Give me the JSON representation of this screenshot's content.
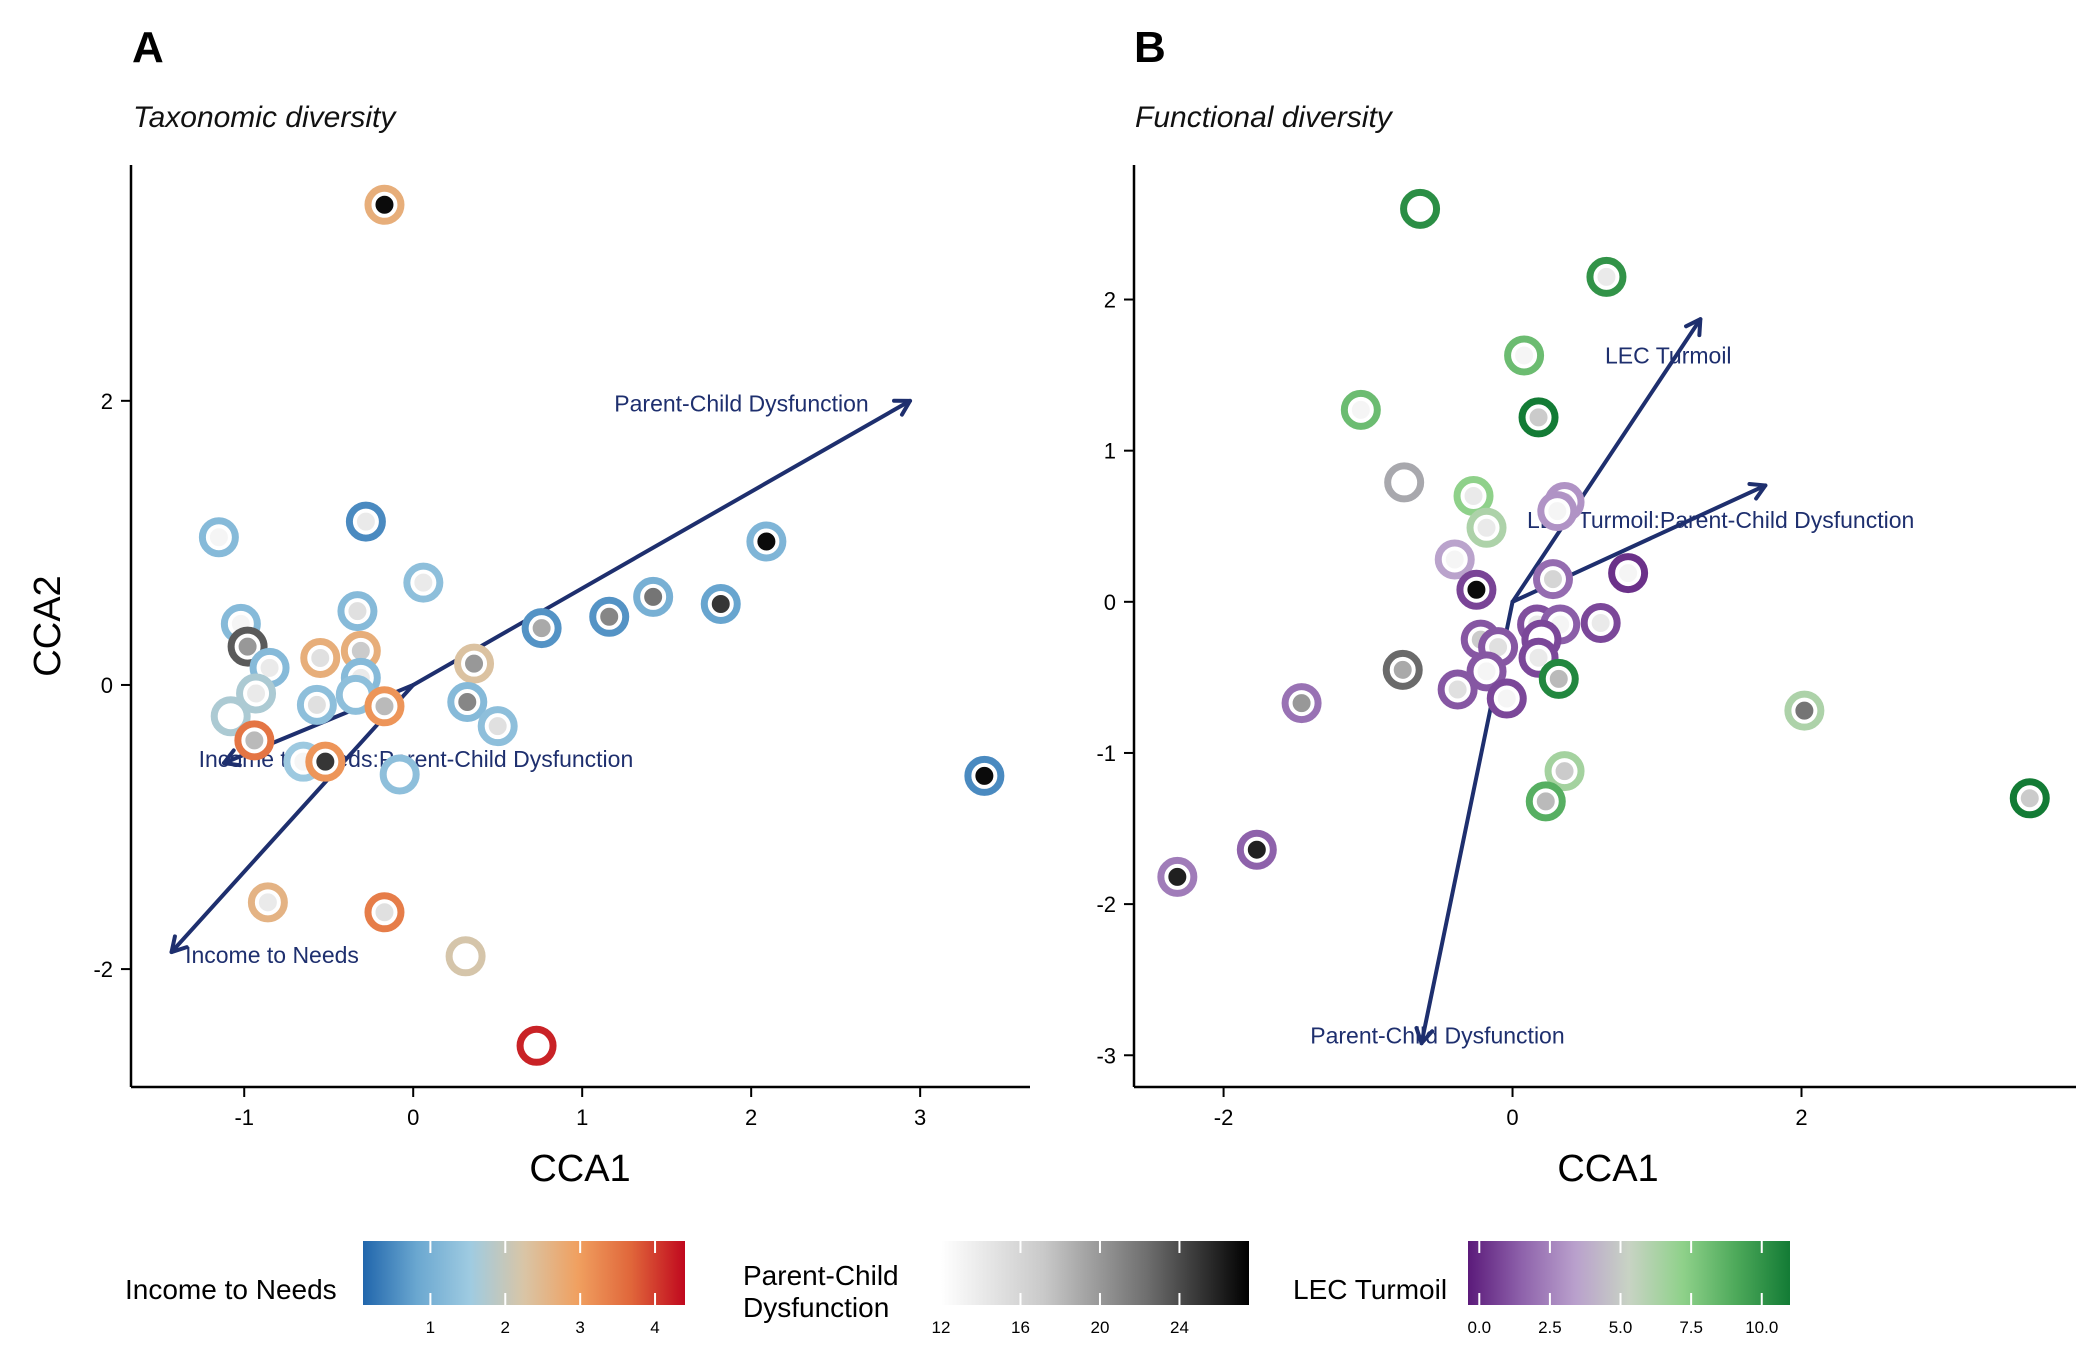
{
  "legend": {
    "income_title": "Income to Needs",
    "income_ticks": [
      "1",
      "2",
      "3",
      "4"
    ],
    "income_tick_values": [
      1,
      2,
      3,
      4
    ],
    "income_range": [
      0.1,
      4.4
    ],
    "income_colors": [
      "#2166ac",
      "#6aa7d0",
      "#9fcbe1",
      "#d9c5a6",
      "#f0a060",
      "#e0663a",
      "#c0081e"
    ],
    "pcd_title_line1": "Parent-Child",
    "pcd_title_line2": "Dysfunction",
    "pcd_ticks": [
      "12",
      "16",
      "20",
      "24"
    ],
    "pcd_tick_values": [
      12,
      16,
      20,
      24
    ],
    "pcd_range": [
      12,
      27.5
    ],
    "pcd_colors": [
      "#ffffff",
      "#c9c9c9",
      "#6f6f6f",
      "#000000"
    ],
    "lec_title": "LEC Turmoil",
    "lec_ticks": [
      "0.0",
      "2.5",
      "5.0",
      "7.5",
      "10.0"
    ],
    "lec_tick_values": [
      0,
      2.5,
      5,
      7.5,
      10
    ],
    "lec_range": [
      -0.4,
      11.0
    ],
    "lec_colors": [
      "#5b1a7a",
      "#8e62ab",
      "#b9a0cc",
      "#c8d3c4",
      "#8fd18a",
      "#4da95a",
      "#137b35"
    ]
  },
  "chart_data": [
    {
      "type": "scatter",
      "panel_label": "A",
      "title": "Taxonomic diversity",
      "xlabel": "CCA1",
      "ylabel": "CCA2",
      "xlim": [
        -1.67,
        3.65
      ],
      "ylim": [
        -2.83,
        3.66
      ],
      "xticks": [
        -1,
        0,
        1,
        2,
        3
      ],
      "xtick_labels": [
        "-1",
        "0",
        "1",
        "2",
        "3"
      ],
      "yticks": [
        -2,
        0,
        2
      ],
      "ytick_labels": [
        "-2",
        "0",
        "2"
      ],
      "ring_color_variable": "Income to Needs",
      "fill_color_variable": "Parent-Child Dysfunction",
      "points": [
        {
          "x": -0.17,
          "y": 3.38,
          "ring": 2.7,
          "fill": 27
        },
        {
          "x": -1.15,
          "y": 1.04,
          "ring": 1.2,
          "fill": 13
        },
        {
          "x": -0.28,
          "y": 1.15,
          "ring": 0.5,
          "fill": 14
        },
        {
          "x": 0.06,
          "y": 0.72,
          "ring": 1.3,
          "fill": 14
        },
        {
          "x": 2.09,
          "y": 1.01,
          "ring": 1.1,
          "fill": 27
        },
        {
          "x": -1.02,
          "y": 0.43,
          "ring": 1.2,
          "fill": 13
        },
        {
          "x": -0.33,
          "y": 0.52,
          "ring": 1.2,
          "fill": 15
        },
        {
          "x": 1.42,
          "y": 0.62,
          "ring": 1.0,
          "fill": 22
        },
        {
          "x": 1.82,
          "y": 0.57,
          "ring": 0.8,
          "fill": 25
        },
        {
          "x": 1.16,
          "y": 0.48,
          "ring": 0.6,
          "fill": 21
        },
        {
          "x": 0.76,
          "y": 0.4,
          "ring": 0.6,
          "fill": 19
        },
        {
          "x": -0.98,
          "y": 0.27,
          "ring": 2.0,
          "fill": 20,
          "ring_override": "#5a5a5a"
        },
        {
          "x": -0.31,
          "y": 0.24,
          "ring": 2.7,
          "fill": 17
        },
        {
          "x": -0.55,
          "y": 0.19,
          "ring": 2.7,
          "fill": 15
        },
        {
          "x": -0.85,
          "y": 0.12,
          "ring": 1.2,
          "fill": 14
        },
        {
          "x": 0.36,
          "y": 0.15,
          "ring": 2.3,
          "fill": 20
        },
        {
          "x": -0.31,
          "y": 0.05,
          "ring": 1.2,
          "fill": 14
        },
        {
          "x": -0.93,
          "y": -0.06,
          "ring": 1.7,
          "fill": 14
        },
        {
          "x": -0.34,
          "y": -0.07,
          "ring": 1.3,
          "fill": 12
        },
        {
          "x": -0.17,
          "y": -0.15,
          "ring": 3.1,
          "fill": 18
        },
        {
          "x": -0.57,
          "y": -0.14,
          "ring": 1.3,
          "fill": 15
        },
        {
          "x": 0.32,
          "y": -0.12,
          "ring": 1.2,
          "fill": 21
        },
        {
          "x": -1.08,
          "y": -0.22,
          "ring": 1.7,
          "fill": 12
        },
        {
          "x": 0.5,
          "y": -0.29,
          "ring": 1.3,
          "fill": 15
        },
        {
          "x": -0.94,
          "y": -0.39,
          "ring": 3.5,
          "fill": 18
        },
        {
          "x": -0.65,
          "y": -0.54,
          "ring": 1.5,
          "fill": 13
        },
        {
          "x": -0.52,
          "y": -0.54,
          "ring": 3.1,
          "fill": 25
        },
        {
          "x": -0.08,
          "y": -0.63,
          "ring": 1.3,
          "fill": 12
        },
        {
          "x": 3.38,
          "y": -0.64,
          "ring": 0.5,
          "fill": 27
        },
        {
          "x": -0.86,
          "y": -1.53,
          "ring": 2.6,
          "fill": 14
        },
        {
          "x": -0.17,
          "y": -1.6,
          "ring": 3.4,
          "fill": 15
        },
        {
          "x": 0.31,
          "y": -1.91,
          "ring": 2.2,
          "fill": 12
        },
        {
          "x": 0.73,
          "y": -2.54,
          "ring": 4.2,
          "fill": 12
        }
      ],
      "vectors": [
        {
          "label": "Parent-Child Dysfunction",
          "x": 2.94,
          "y": 2.0,
          "label_x": 1.19,
          "label_y": 1.98
        },
        {
          "label": "Income to Needs",
          "x": -1.43,
          "y": -1.88,
          "label_x": -1.35,
          "label_y": -1.9
        },
        {
          "label": "Income to Needs:Parent-Child Dysfunction",
          "x": -1.12,
          "y": -0.55,
          "label_x": -1.27,
          "label_y": -0.52
        }
      ]
    },
    {
      "type": "scatter",
      "panel_label": "B",
      "title": "Functional diversity",
      "xlabel": "CCA1",
      "ylabel": "",
      "xlim": [
        -2.62,
        3.9
      ],
      "ylim": [
        -3.21,
        2.89
      ],
      "xticks": [
        -2,
        0,
        2
      ],
      "xtick_labels": [
        "-2",
        "0",
        "2"
      ],
      "yticks": [
        -3,
        -2,
        -1,
        0,
        1,
        2
      ],
      "ytick_labels": [
        "-3",
        "-2",
        "-1",
        "0",
        "1",
        "2"
      ],
      "ring_color_variable": "LEC Turmoil",
      "fill_color_variable": "Parent-Child Dysfunction",
      "points": [
        {
          "x": -0.64,
          "y": 2.6,
          "ring": 10.2,
          "fill": 12
        },
        {
          "x": 0.65,
          "y": 2.15,
          "ring": 10.0,
          "fill": 14
        },
        {
          "x": 0.08,
          "y": 1.63,
          "ring": 8.2,
          "fill": 13
        },
        {
          "x": -1.05,
          "y": 1.27,
          "ring": 8.2,
          "fill": 13
        },
        {
          "x": 0.18,
          "y": 1.22,
          "ring": 11.0,
          "fill": 17
        },
        {
          "x": -0.75,
          "y": 0.79,
          "ring": 4.0,
          "fill": 12,
          "ring_override": "#a8a8ad"
        },
        {
          "x": -0.27,
          "y": 0.7,
          "ring": 7.2,
          "fill": 14
        },
        {
          "x": -0.18,
          "y": 0.49,
          "ring": 6.2,
          "fill": 14
        },
        {
          "x": 0.36,
          "y": 0.66,
          "ring": 3.0,
          "fill": 16
        },
        {
          "x": 0.31,
          "y": 0.6,
          "ring": 3.0,
          "fill": 13
        },
        {
          "x": -0.4,
          "y": 0.28,
          "ring": 3.5,
          "fill": 13
        },
        {
          "x": -0.25,
          "y": 0.08,
          "ring": 0.7,
          "fill": 27
        },
        {
          "x": 0.28,
          "y": 0.15,
          "ring": 1.8,
          "fill": 16
        },
        {
          "x": 0.8,
          "y": 0.19,
          "ring": 0.2,
          "fill": 13
        },
        {
          "x": 0.17,
          "y": -0.15,
          "ring": 1.0,
          "fill": 14
        },
        {
          "x": 0.33,
          "y": -0.15,
          "ring": 1.4,
          "fill": 13
        },
        {
          "x": 0.61,
          "y": -0.14,
          "ring": 0.8,
          "fill": 14
        },
        {
          "x": -0.22,
          "y": -0.25,
          "ring": 1.2,
          "fill": 17
        },
        {
          "x": -0.1,
          "y": -0.3,
          "ring": 1.2,
          "fill": 15
        },
        {
          "x": 0.2,
          "y": -0.25,
          "ring": 0.8,
          "fill": 12
        },
        {
          "x": 0.18,
          "y": -0.37,
          "ring": 0.8,
          "fill": 14
        },
        {
          "x": -0.76,
          "y": -0.45,
          "ring": 3.0,
          "fill": 19,
          "ring_override": "#6a6a6a"
        },
        {
          "x": -0.18,
          "y": -0.46,
          "ring": 1.2,
          "fill": 13
        },
        {
          "x": 0.32,
          "y": -0.51,
          "ring": 10.5,
          "fill": 18
        },
        {
          "x": -0.38,
          "y": -0.58,
          "ring": 1.2,
          "fill": 15
        },
        {
          "x": -0.04,
          "y": -0.64,
          "ring": 0.8,
          "fill": 13
        },
        {
          "x": -1.46,
          "y": -0.67,
          "ring": 2.0,
          "fill": 20
        },
        {
          "x": 2.02,
          "y": -0.72,
          "ring": 6.2,
          "fill": 22
        },
        {
          "x": 0.36,
          "y": -1.12,
          "ring": 6.5,
          "fill": 17
        },
        {
          "x": 0.23,
          "y": -1.32,
          "ring": 8.8,
          "fill": 18
        },
        {
          "x": 3.58,
          "y": -1.3,
          "ring": 11.0,
          "fill": 17
        },
        {
          "x": -1.77,
          "y": -1.64,
          "ring": 1.5,
          "fill": 26
        },
        {
          "x": -2.32,
          "y": -1.82,
          "ring": 2.3,
          "fill": 26
        }
      ],
      "vectors": [
        {
          "label": "LEC Turmoil",
          "x": 1.3,
          "y": 1.87,
          "label_x": 0.64,
          "label_y": 1.63
        },
        {
          "label": "LEC Turmoil:Parent-Child Dysfunction",
          "x": 1.75,
          "y": 0.77,
          "label_x": 0.1,
          "label_y": 0.54
        },
        {
          "label": "Parent-Child Dysfunction",
          "x": -0.63,
          "y": -2.92,
          "label_x": -1.4,
          "label_y": -2.87
        }
      ]
    }
  ]
}
